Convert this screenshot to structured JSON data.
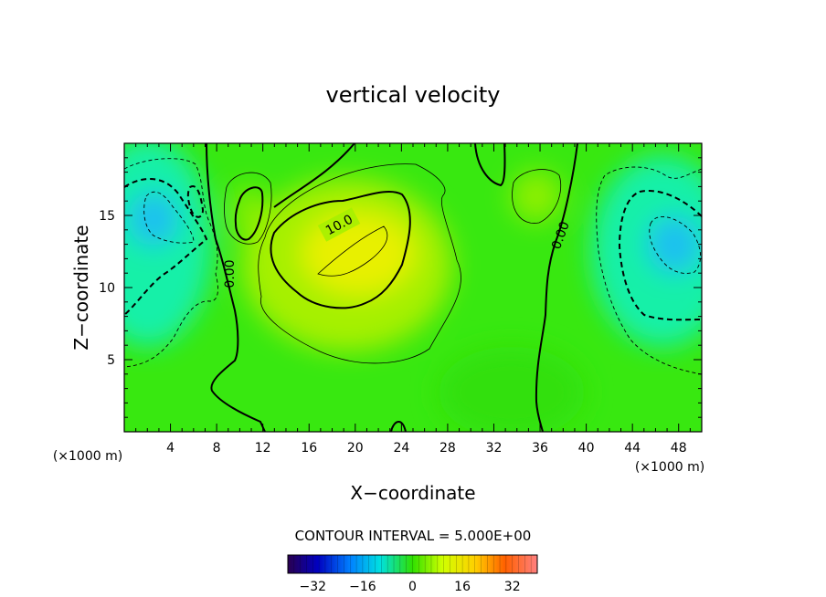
{
  "chart_data": {
    "type": "heatmap",
    "title": "vertical velocity",
    "xlabel": "X−coordinate",
    "ylabel": "Z−coordinate",
    "x_unit": "(×1000 m)",
    "x_unit_right": "(×1000 m)",
    "xlim": [
      0,
      50
    ],
    "ylim": [
      0,
      20
    ],
    "x_ticks": [
      4,
      8,
      12,
      16,
      20,
      24,
      28,
      32,
      36,
      40,
      44,
      48
    ],
    "y_ticks": [
      5,
      10,
      15
    ],
    "contour_interval_text": "CONTOUR INTERVAL = 5.000E+00",
    "contour_labels": [
      {
        "text": "10.0",
        "x": 18.8,
        "y": 13.8
      },
      {
        "text": "0.00",
        "x": 8.5,
        "y": 11.0
      },
      {
        "text": "0.00",
        "x": 37.8,
        "y": 13.7
      }
    ],
    "field_features": [
      {
        "type": "max",
        "x": 20,
        "y": 12,
        "value": 12
      },
      {
        "type": "min",
        "x": 2.5,
        "y": 14.5,
        "value": -12
      },
      {
        "type": "min",
        "x": 47,
        "y": 12.5,
        "value": -12
      },
      {
        "type": "max",
        "x": 35.5,
        "y": 16.5,
        "value": 6
      },
      {
        "type": "max",
        "x": 11,
        "y": 15.5,
        "value": 6
      }
    ],
    "colorbar": {
      "range": [
        -40,
        40
      ],
      "ticks": [
        -32,
        -16,
        0,
        16,
        32
      ],
      "tick_labels": [
        "−32",
        "−16",
        "0",
        "16",
        "32"
      ]
    }
  }
}
